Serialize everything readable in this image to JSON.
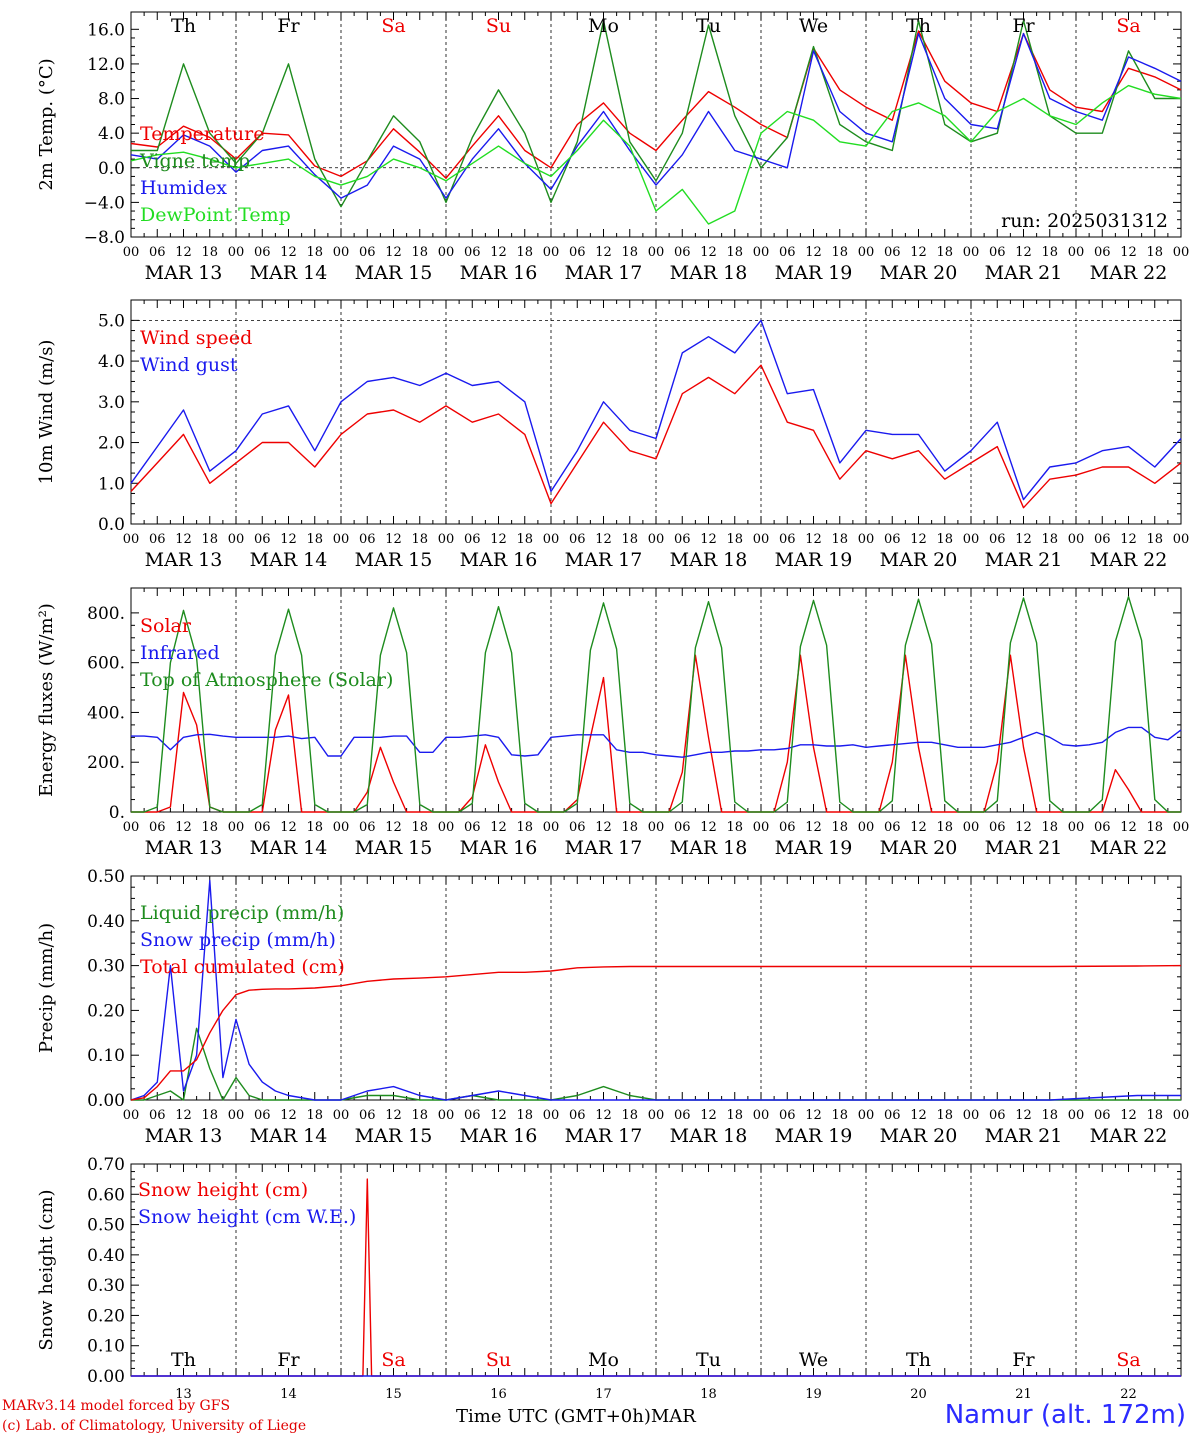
{
  "run_label": "run: 2025031312",
  "days": [
    "Th",
    "Fr",
    "Sa",
    "Su",
    "Mo",
    "Tu",
    "We",
    "Th",
    "Fr",
    "Sa"
  ],
  "day_colors": [
    "#000000",
    "#000000",
    "#ee0000",
    "#ee0000",
    "#000000",
    "#000000",
    "#000000",
    "#000000",
    "#000000",
    "#ee0000"
  ],
  "dates": [
    "MAR 13",
    "MAR 14",
    "MAR 15",
    "MAR 16",
    "MAR 17",
    "MAR 18",
    "MAR 19",
    "MAR 20",
    "MAR 21",
    "MAR 22"
  ],
  "hour_ticks": [
    "00",
    "06",
    "12",
    "18"
  ],
  "day_numbers": [
    "13",
    "14",
    "15",
    "16",
    "17",
    "18",
    "19",
    "20",
    "21",
    "22"
  ],
  "bottom_month": "MAR",
  "xaxis_title": "Time UTC (GMT+0h)",
  "credits": [
    "MARv3.14 model forced by GFS",
    "(c) Lab. of Climatology, University of Liege"
  ],
  "station": "Namur (alt. 172m)",
  "colors": {
    "red": "#ee0000",
    "green": "#1e8c1e",
    "blue": "#1a1aee",
    "light_green": "#22dd22"
  },
  "chart_data": [
    {
      "type": "line",
      "ylabel": "2m Temp. (°C)",
      "ylim": [
        -8,
        18
      ],
      "yticks": [
        -8.0,
        -4.0,
        0.0,
        4.0,
        8.0,
        12.0,
        16.0
      ],
      "ytick_labels": [
        "−8.0",
        "−4.0",
        "0.0",
        "4.0",
        "8.0",
        "12.0",
        "16.0"
      ],
      "ref_line": 0,
      "x": [
        0,
        6,
        12,
        18,
        24,
        30,
        36,
        42,
        48,
        54,
        60,
        66,
        72,
        78,
        84,
        90,
        96,
        102,
        108,
        114,
        120,
        126,
        132,
        138,
        144,
        150,
        156,
        162,
        168,
        174,
        180,
        186,
        192,
        198,
        204,
        210,
        216,
        222,
        228,
        234,
        240
      ],
      "series": [
        {
          "name": "Temperature",
          "color": "red",
          "values": [
            2.8,
            2.4,
            4.8,
            3.5,
            1.0,
            4.0,
            3.8,
            0.2,
            -1.0,
            0.8,
            4.5,
            1.8,
            -1.2,
            2.5,
            6.0,
            2.0,
            0.0,
            5.0,
            7.5,
            4.0,
            2.0,
            5.5,
            8.8,
            7.0,
            5.0,
            3.5,
            13.8,
            9.0,
            7.0,
            5.5,
            15.8,
            10.0,
            7.5,
            6.5,
            15.5,
            9.0,
            7.0,
            6.5,
            11.5,
            10.5,
            9.0
          ]
        },
        {
          "name": "Vigne temp",
          "color": "green",
          "values": [
            2.0,
            2.0,
            12.0,
            4.0,
            0.5,
            4.0,
            12.0,
            1.0,
            -4.5,
            0.8,
            6.0,
            3.0,
            -4.0,
            3.5,
            9.0,
            4.0,
            -4.0,
            3.0,
            17.0,
            3.0,
            -1.5,
            4.0,
            16.5,
            6.0,
            0.0,
            3.5,
            14.0,
            5.0,
            3.0,
            2.0,
            17.0,
            5.0,
            3.0,
            4.0,
            17.0,
            6.0,
            4.0,
            4.0,
            13.5,
            8.0,
            8.0
          ]
        },
        {
          "name": "Humidex",
          "color": "blue",
          "values": [
            1.5,
            1.0,
            3.8,
            2.5,
            -0.5,
            2.0,
            2.5,
            -0.8,
            -3.5,
            -2.0,
            2.5,
            1.0,
            -3.5,
            1.0,
            4.5,
            0.5,
            -2.5,
            2.5,
            6.5,
            2.0,
            -2.0,
            1.5,
            6.5,
            2.0,
            1.0,
            0.0,
            13.5,
            6.5,
            4.0,
            3.0,
            15.5,
            8.0,
            5.0,
            4.5,
            15.5,
            8.0,
            6.5,
            5.5,
            12.8,
            11.5,
            10.0
          ]
        },
        {
          "name": "DewPoint Temp",
          "color": "light_green",
          "values": [
            0.8,
            1.5,
            1.8,
            1.0,
            0.0,
            0.5,
            1.0,
            -1.0,
            -2.0,
            -1.0,
            1.0,
            0.0,
            -1.5,
            0.5,
            2.5,
            0.5,
            -1.0,
            2.0,
            5.5,
            2.5,
            -5.0,
            -2.5,
            -6.5,
            -5.0,
            4.0,
            6.5,
            5.5,
            3.0,
            2.5,
            6.5,
            7.5,
            6.0,
            3.0,
            6.5,
            8.0,
            6.0,
            5.0,
            7.5,
            9.5,
            8.5,
            8.0
          ]
        }
      ]
    },
    {
      "type": "line",
      "ylabel": "10m Wind (m/s)",
      "ylim": [
        0,
        5.5
      ],
      "yticks": [
        0,
        1,
        2,
        3,
        4,
        5
      ],
      "ytick_labels": [
        "0.0",
        "1.0",
        "2.0",
        "3.0",
        "4.0",
        "5.0"
      ],
      "ref_line": 5,
      "x": [
        0,
        6,
        12,
        18,
        24,
        30,
        36,
        42,
        48,
        54,
        60,
        66,
        72,
        78,
        84,
        90,
        96,
        102,
        108,
        114,
        120,
        126,
        132,
        138,
        144,
        150,
        156,
        162,
        168,
        174,
        180,
        186,
        192,
        198,
        204,
        210,
        216,
        222,
        228,
        234,
        240
      ],
      "series": [
        {
          "name": "Wind speed",
          "color": "red",
          "values": [
            0.8,
            1.5,
            2.2,
            1.0,
            1.5,
            2.0,
            2.0,
            1.4,
            2.2,
            2.7,
            2.8,
            2.5,
            2.9,
            2.5,
            2.7,
            2.2,
            0.5,
            1.5,
            2.5,
            1.8,
            1.6,
            3.2,
            3.6,
            3.2,
            3.9,
            2.5,
            2.3,
            1.1,
            1.8,
            1.6,
            1.8,
            1.1,
            1.5,
            1.9,
            0.4,
            1.1,
            1.2,
            1.4,
            1.4,
            1.0,
            1.5
          ]
        },
        {
          "name": "Wind gust",
          "color": "blue",
          "values": [
            1.0,
            1.9,
            2.8,
            1.3,
            1.8,
            2.7,
            2.9,
            1.8,
            3.0,
            3.5,
            3.6,
            3.4,
            3.7,
            3.4,
            3.5,
            3.0,
            0.8,
            1.8,
            3.0,
            2.3,
            2.1,
            4.2,
            4.6,
            4.2,
            5.0,
            3.2,
            3.3,
            1.5,
            2.3,
            2.2,
            2.2,
            1.3,
            1.8,
            2.5,
            0.6,
            1.4,
            1.5,
            1.8,
            1.9,
            1.4,
            2.1
          ]
        }
      ]
    },
    {
      "type": "line",
      "ylabel": "Energy fluxes (W/m²)",
      "ylim": [
        0,
        900
      ],
      "yticks": [
        0,
        200,
        400,
        600,
        800
      ],
      "ytick_labels": [
        "0.",
        "200.",
        "400.",
        "600.",
        "800."
      ],
      "x": [
        0,
        3,
        6,
        9,
        12,
        15,
        18,
        21,
        24,
        27,
        30,
        33,
        36,
        39,
        42,
        45,
        48,
        51,
        54,
        57,
        60,
        63,
        66,
        69,
        72,
        75,
        78,
        81,
        84,
        87,
        90,
        93,
        96,
        99,
        102,
        105,
        108,
        111,
        114,
        117,
        120,
        123,
        126,
        129,
        132,
        135,
        138,
        141,
        144,
        147,
        150,
        153,
        156,
        159,
        162,
        165,
        168,
        171,
        174,
        177,
        180,
        183,
        186,
        189,
        192,
        195,
        198,
        201,
        204,
        207,
        210,
        213,
        216,
        219,
        222,
        225,
        228,
        231,
        234,
        237,
        240
      ],
      "series": [
        {
          "name": "Solar",
          "color": "red",
          "values": [
            0,
            0,
            0,
            20,
            480,
            350,
            20,
            0,
            0,
            0,
            0,
            330,
            470,
            0,
            0,
            0,
            0,
            0,
            80,
            260,
            120,
            0,
            0,
            0,
            0,
            0,
            60,
            270,
            120,
            0,
            0,
            0,
            0,
            0,
            50,
            300,
            540,
            0,
            0,
            0,
            0,
            0,
            160,
            630,
            300,
            0,
            0,
            0,
            0,
            0,
            200,
            630,
            260,
            0,
            0,
            0,
            0,
            0,
            200,
            630,
            260,
            0,
            0,
            0,
            0,
            0,
            200,
            630,
            260,
            0,
            0,
            0,
            0,
            0,
            0,
            170,
            90,
            0,
            0,
            0,
            0
          ]
        },
        {
          "name": "Infrared",
          "color": "blue",
          "values": [
            305,
            305,
            300,
            250,
            300,
            310,
            312,
            305,
            300,
            300,
            300,
            300,
            305,
            295,
            300,
            225,
            225,
            300,
            300,
            300,
            305,
            305,
            240,
            240,
            300,
            300,
            305,
            310,
            300,
            230,
            225,
            230,
            300,
            305,
            310,
            310,
            310,
            250,
            240,
            240,
            230,
            225,
            220,
            230,
            240,
            240,
            245,
            245,
            250,
            250,
            255,
            270,
            270,
            265,
            265,
            270,
            260,
            265,
            270,
            275,
            280,
            280,
            270,
            260,
            260,
            260,
            270,
            280,
            300,
            320,
            300,
            270,
            265,
            270,
            280,
            320,
            340,
            340,
            300,
            290,
            330
          ]
        },
        {
          "name": "Top of Atmosphere (Solar)",
          "color": "green",
          "values": [
            0,
            0,
            20,
            600,
            810,
            620,
            20,
            0,
            0,
            0,
            30,
            630,
            815,
            630,
            30,
            0,
            0,
            0,
            30,
            630,
            820,
            640,
            30,
            0,
            0,
            0,
            35,
            640,
            825,
            640,
            35,
            0,
            0,
            0,
            35,
            650,
            840,
            655,
            35,
            0,
            0,
            0,
            40,
            660,
            845,
            660,
            40,
            0,
            0,
            0,
            40,
            665,
            850,
            670,
            40,
            0,
            0,
            0,
            45,
            670,
            855,
            675,
            45,
            0,
            0,
            0,
            45,
            680,
            860,
            680,
            45,
            0,
            0,
            0,
            50,
            685,
            865,
            690,
            50,
            0,
            0
          ]
        }
      ]
    },
    {
      "type": "line",
      "ylabel": "Precip (mm/h)",
      "ylim": [
        0,
        0.5
      ],
      "yticks": [
        0,
        0.1,
        0.2,
        0.3,
        0.4,
        0.5
      ],
      "ytick_labels": [
        "0.00",
        "0.10",
        "0.20",
        "0.30",
        "0.40",
        "0.50"
      ],
      "x": [
        0,
        3,
        6,
        9,
        12,
        15,
        18,
        21,
        24,
        27,
        30,
        33,
        36,
        42,
        48,
        54,
        60,
        66,
        72,
        78,
        84,
        90,
        96,
        102,
        108,
        114,
        120,
        150,
        180,
        210,
        230,
        240
      ],
      "series": [
        {
          "name": "Liquid precip (mm/h)",
          "color": "green",
          "values": [
            0,
            0,
            0.01,
            0.02,
            0.0,
            0.16,
            0.07,
            0.0,
            0.05,
            0.01,
            0.0,
            0.0,
            0.0,
            0.0,
            0.0,
            0.01,
            0.01,
            0.0,
            0.0,
            0.01,
            0.0,
            0.0,
            0.0,
            0.01,
            0.03,
            0.01,
            0.0,
            0.0,
            0.0,
            0.0,
            0.0,
            0.0
          ]
        },
        {
          "name": "Snow precip (mm/h)",
          "color": "blue",
          "values": [
            0,
            0.01,
            0.04,
            0.3,
            0.02,
            0.1,
            0.49,
            0.05,
            0.18,
            0.08,
            0.04,
            0.02,
            0.01,
            0.0,
            0.0,
            0.02,
            0.03,
            0.01,
            0.0,
            0.01,
            0.02,
            0.01,
            0.0,
            0.0,
            0.0,
            0.0,
            0.0,
            0.0,
            0.0,
            0.0,
            0.01,
            0.01
          ]
        },
        {
          "name": "Total cumulated (cm)",
          "color": "red",
          "values": [
            0,
            0.005,
            0.03,
            0.065,
            0.065,
            0.09,
            0.15,
            0.2,
            0.235,
            0.245,
            0.247,
            0.248,
            0.248,
            0.25,
            0.255,
            0.265,
            0.27,
            0.272,
            0.275,
            0.28,
            0.285,
            0.285,
            0.288,
            0.295,
            0.297,
            0.298,
            0.298,
            0.298,
            0.298,
            0.298,
            0.299,
            0.3
          ]
        }
      ]
    },
    {
      "type": "line",
      "ylabel": "Snow height (cm)",
      "ylim": [
        0,
        0.7
      ],
      "yticks": [
        0,
        0.1,
        0.2,
        0.3,
        0.4,
        0.5,
        0.6,
        0.7
      ],
      "ytick_labels": [
        "0.00",
        "0.10",
        "0.20",
        "0.30",
        "0.40",
        "0.50",
        "0.60",
        "0.70"
      ],
      "x": [
        0,
        52,
        53,
        54,
        55,
        56,
        240
      ],
      "series": [
        {
          "name": "Snow height (cm)",
          "color": "red",
          "values": [
            0,
            0,
            0.0,
            0.65,
            0.0,
            0,
            0
          ]
        },
        {
          "name": "Snow height (cm W.E.)",
          "color": "blue",
          "values": [
            0,
            0,
            0,
            0,
            0,
            0,
            0
          ]
        }
      ]
    }
  ]
}
